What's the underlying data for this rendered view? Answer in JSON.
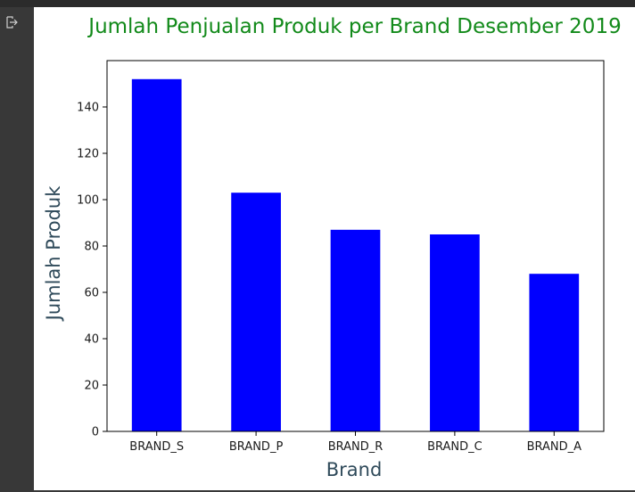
{
  "output_area": {
    "icon": "output-arrow-icon"
  },
  "chart_data": {
    "type": "bar",
    "title": "Jumlah Penjualan Produk per Brand Desember 2019",
    "xlabel": "Brand",
    "ylabel": "Jumlah Produk",
    "categories": [
      "BRAND_S",
      "BRAND_P",
      "BRAND_R",
      "BRAND_C",
      "BRAND_A"
    ],
    "values": [
      152,
      103,
      87,
      85,
      68
    ],
    "ylim": [
      0,
      160
    ],
    "yticks": [
      0,
      20,
      40,
      60,
      80,
      100,
      120,
      140
    ],
    "grid": false,
    "legend": "none",
    "colors": {
      "bar": "#0000ff",
      "title": "#128a1a",
      "axis_label": "#2f4a5a"
    }
  }
}
